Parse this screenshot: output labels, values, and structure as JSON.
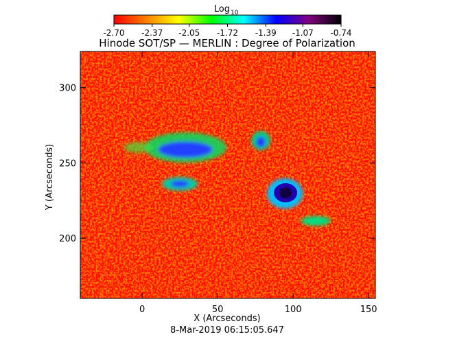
{
  "chart_data": {
    "type": "heatmap",
    "title": "Hinode SOT/SP — MERLIN : Degree of Polarization",
    "xlabel": "X (Arcseconds)",
    "ylabel": "Y (Arcseconds)",
    "footer": "8-Mar-2019 06:15:05.647",
    "xlim": [
      -41,
      154.5
    ],
    "xticks": [
      0,
      50,
      100,
      150
    ],
    "ylim": [
      160,
      324
    ],
    "yticks": [
      200,
      250,
      300
    ],
    "colorbar": {
      "label": "Log",
      "label_sub": "10",
      "lim": [
        -2.7,
        -0.74
      ],
      "ticks": [
        {
          "value": -2.7,
          "label": "-2.70"
        },
        {
          "value": -2.37,
          "label": "-2.37"
        },
        {
          "value": -2.05,
          "label": "-2.05"
        },
        {
          "value": -1.72,
          "label": "-1.72"
        },
        {
          "value": -1.39,
          "label": "-1.39"
        },
        {
          "value": -1.07,
          "label": "-1.07"
        },
        {
          "value": -0.74,
          "label": "-0.74"
        }
      ],
      "colormap": [
        "#ff0000",
        "#ff8000",
        "#ffff00",
        "#00ff00",
        "#00ffff",
        "#0000ff",
        "#800080",
        "#000000"
      ]
    }
  }
}
